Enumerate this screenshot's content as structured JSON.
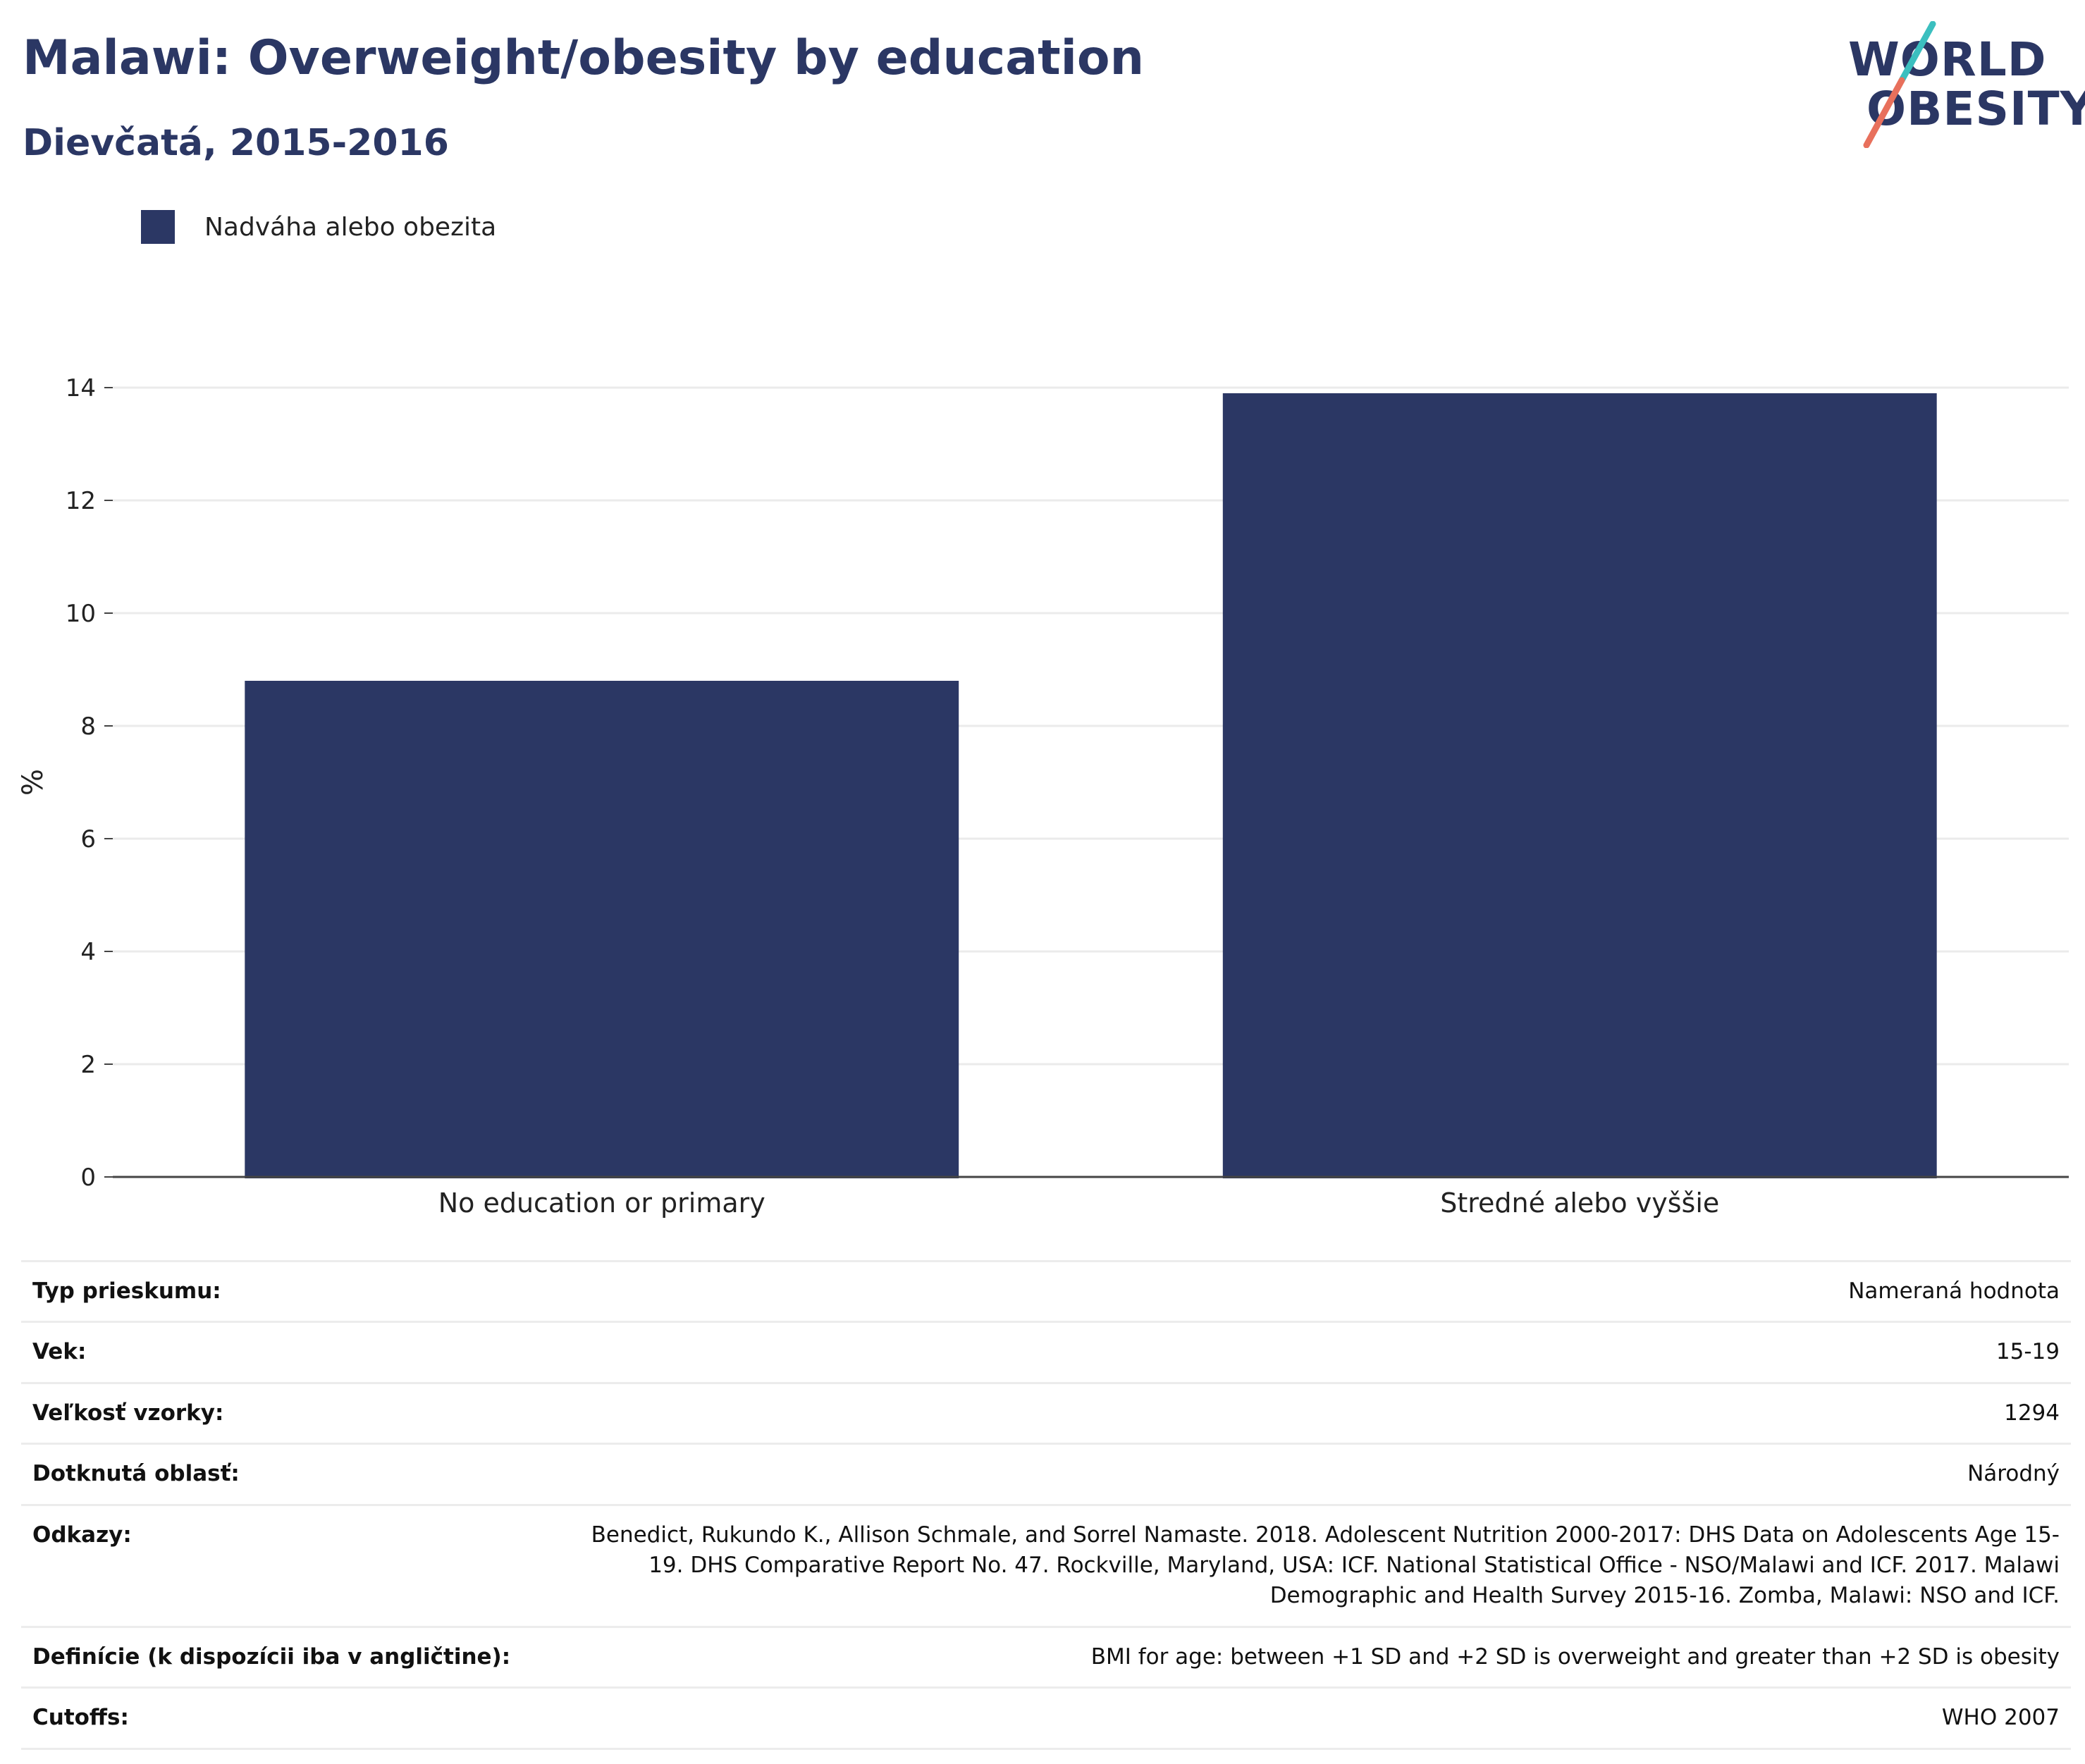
{
  "header": {
    "title": "Malawi: Overweight/obesity by education",
    "subtitle": "Dievčatá, 2015-2016"
  },
  "logo": {
    "line1": "WORLD",
    "line2": "OBESITY",
    "accent_teal": "#3bbfbf",
    "accent_coral": "#e8705c"
  },
  "colors": {
    "bar": "#2b3764",
    "text": "#2b3764"
  },
  "chart_data": {
    "type": "bar",
    "categories": [
      "No education or primary",
      "Stredné alebo vyššie"
    ],
    "series": [
      {
        "name": "Nadváha alebo obezita",
        "values": [
          8.8,
          13.9
        ]
      }
    ],
    "ylabel": "%",
    "xlabel": "",
    "ylim": [
      0,
      14
    ],
    "yticks": [
      0,
      2,
      4,
      6,
      8,
      10,
      12,
      14
    ],
    "grid": true,
    "legend_position": "top-left"
  },
  "info": [
    {
      "key": "Typ prieskumu:",
      "value": "Nameraná hodnota"
    },
    {
      "key": "Vek:",
      "value": "15-19"
    },
    {
      "key": "Veľkosť vzorky:",
      "value": "1294"
    },
    {
      "key": "Dotknutá oblasť:",
      "value": "Národný"
    },
    {
      "key": "Odkazy:",
      "value": "Benedict, Rukundo K., Allison Schmale, and Sorrel Namaste. 2018. Adolescent Nutrition 2000-2017: DHS Data on Adolescents Age 15-19. DHS Comparative Report No. 47. Rockville, Maryland, USA: ICF. National Statistical Office - NSO/Malawi and ICF. 2017. Malawi Demographic and Health Survey 2015-16. Zomba, Malawi: NSO and ICF."
    },
    {
      "key": "Definície (k dispozícii iba v angličtine):",
      "value": "BMI for age: between +1 SD and +2 SD is overweight and greater than +2 SD is obesity"
    },
    {
      "key": "Cutoffs:",
      "value": "WHO 2007"
    }
  ]
}
